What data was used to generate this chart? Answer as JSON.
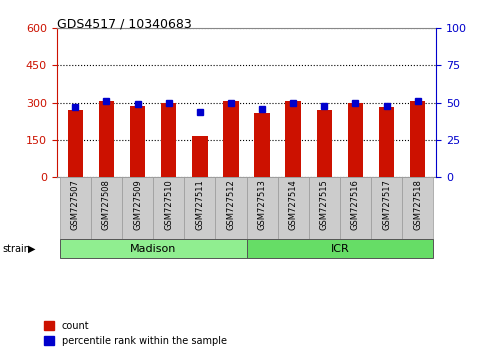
{
  "title": "GDS4517 / 10340683",
  "samples": [
    "GSM727507",
    "GSM727508",
    "GSM727509",
    "GSM727510",
    "GSM727511",
    "GSM727512",
    "GSM727513",
    "GSM727514",
    "GSM727515",
    "GSM727516",
    "GSM727517",
    "GSM727518"
  ],
  "counts": [
    270,
    305,
    285,
    298,
    165,
    305,
    260,
    307,
    272,
    298,
    284,
    305
  ],
  "percentile_vals": [
    282,
    306,
    294,
    300,
    264,
    300,
    276,
    300,
    288,
    300,
    288,
    306
  ],
  "groups": [
    {
      "label": "Madison",
      "start": 0,
      "end": 5,
      "color": "#90EE90"
    },
    {
      "label": "ICR",
      "start": 6,
      "end": 11,
      "color": "#66CC66"
    }
  ],
  "ylim_left": [
    0,
    600
  ],
  "ylim_right": [
    0,
    100
  ],
  "yticks_left": [
    0,
    150,
    300,
    450,
    600
  ],
  "yticks_right": [
    0,
    25,
    50,
    75,
    100
  ],
  "bar_color": "#CC1100",
  "dot_color": "#0000CC",
  "bar_width": 0.5,
  "bg_color": "#FFFFFF",
  "sample_box_color": "#CCCCCC",
  "sample_box_edge": "#999999",
  "grid_color": "#000000",
  "left_axis_color": "#CC1100",
  "right_axis_color": "#0000CC",
  "legend_items": [
    "count",
    "percentile rank within the sample"
  ]
}
